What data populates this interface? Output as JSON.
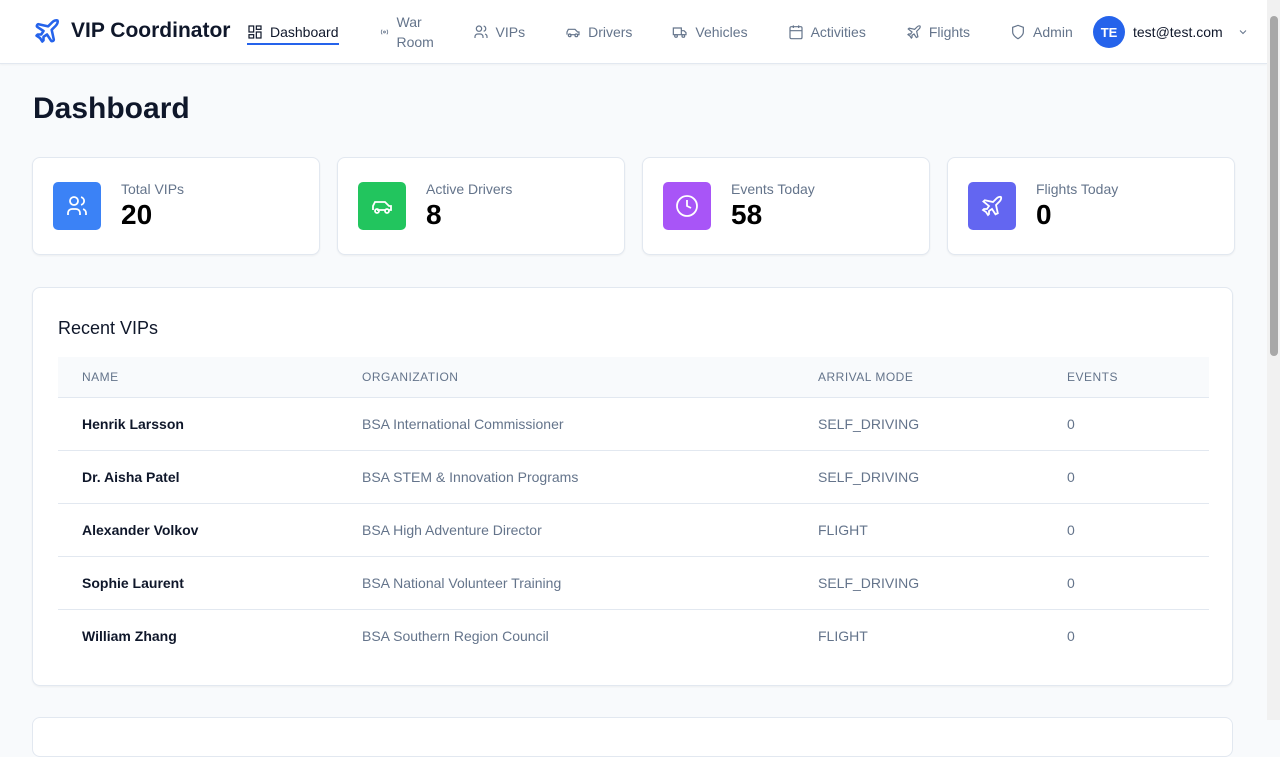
{
  "app": {
    "title": "VIP Coordinator"
  },
  "nav": [
    {
      "label": "Dashboard",
      "icon": "layout-grid-icon",
      "active": true
    },
    {
      "label": "War Room",
      "icon": "radio-icon"
    },
    {
      "label": "VIPs",
      "icon": "users-icon"
    },
    {
      "label": "Drivers",
      "icon": "car-icon"
    },
    {
      "label": "Vehicles",
      "icon": "truck-icon"
    },
    {
      "label": "Activities",
      "icon": "calendar-icon"
    },
    {
      "label": "Flights",
      "icon": "plane-icon"
    },
    {
      "label": "Admin",
      "icon": "shield-icon"
    }
  ],
  "user": {
    "initials": "TE",
    "email": "test@test.com"
  },
  "page": {
    "title": "Dashboard"
  },
  "stats": [
    {
      "label": "Total VIPs",
      "value": "20",
      "color": "#3b82f6",
      "icon": "users-icon"
    },
    {
      "label": "Active Drivers",
      "value": "8",
      "color": "#22c55e",
      "icon": "car-icon"
    },
    {
      "label": "Events Today",
      "value": "58",
      "color": "#a855f7",
      "icon": "clock-icon"
    },
    {
      "label": "Flights Today",
      "value": "0",
      "color": "#6366f1",
      "icon": "plane-icon"
    }
  ],
  "recent": {
    "title": "Recent VIPs",
    "columns": [
      "NAME",
      "ORGANIZATION",
      "ARRIVAL MODE",
      "EVENTS"
    ],
    "rows": [
      [
        "Henrik Larsson",
        "BSA International Commissioner",
        "SELF_DRIVING",
        "0"
      ],
      [
        "Dr. Aisha Patel",
        "BSA STEM & Innovation Programs",
        "SELF_DRIVING",
        "0"
      ],
      [
        "Alexander Volkov",
        "BSA High Adventure Director",
        "FLIGHT",
        "0"
      ],
      [
        "Sophie Laurent",
        "BSA National Volunteer Training",
        "SELF_DRIVING",
        "0"
      ],
      [
        "William Zhang",
        "BSA Southern Region Council",
        "FLIGHT",
        "0"
      ]
    ]
  }
}
